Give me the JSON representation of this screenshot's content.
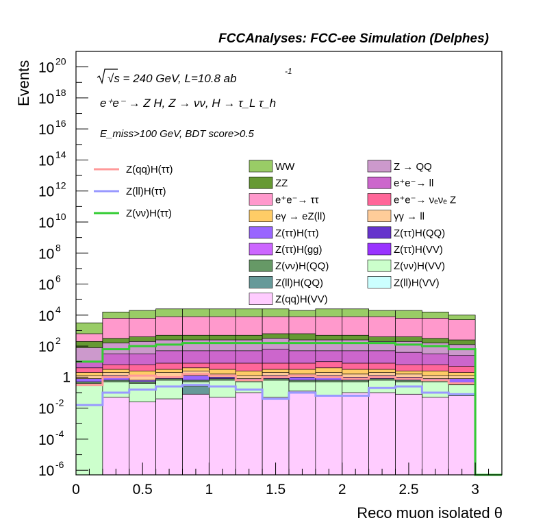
{
  "chart_data": {
    "type": "stacked-histogram",
    "title": "FCCAnalyses: FCC-ee Simulation (Delphes)",
    "annotations": {
      "energy_lumi": "√s = 240 GeV, L=10.8 ab",
      "energy_lumi_sup": "-1",
      "process": "e⁺e⁻ → Z H, Z → νν, H → τ_L τ_h",
      "selection": "E_miss>100 GeV, BDT score>0.5"
    },
    "xlabel": "Reco muon isolated θ",
    "ylabel": "Events",
    "xlim": [
      0,
      3.2
    ],
    "ylim_log10": [
      -6.3,
      21
    ],
    "y_scale": "log",
    "x_ticks": [
      "0",
      "0.5",
      "1",
      "1.5",
      "2",
      "2.5",
      "3"
    ],
    "x_tick_values": [
      0,
      0.5,
      1,
      1.5,
      2,
      2.5,
      3
    ],
    "y_ticks": [
      {
        "base": "10",
        "exp": "-6",
        "log": -6
      },
      {
        "base": "10",
        "exp": "-4",
        "log": -4
      },
      {
        "base": "10",
        "exp": "-2",
        "log": -2
      },
      {
        "base": "1",
        "exp": "",
        "log": 0
      },
      {
        "base": "10",
        "exp": "2",
        "log": 2
      },
      {
        "base": "10",
        "exp": "4",
        "log": 4
      },
      {
        "base": "10",
        "exp": "6",
        "log": 6
      },
      {
        "base": "10",
        "exp": "8",
        "log": 8
      },
      {
        "base": "10",
        "exp": "10",
        "log": 10
      },
      {
        "base": "10",
        "exp": "12",
        "log": 12
      },
      {
        "base": "10",
        "exp": "14",
        "log": 14
      },
      {
        "base": "10",
        "exp": "16",
        "log": 16
      },
      {
        "base": "10",
        "exp": "18",
        "log": 18
      },
      {
        "base": "10",
        "exp": "20",
        "log": 20
      }
    ],
    "bin_edges": [
      0,
      0.2,
      0.4,
      0.6,
      0.8,
      1.0,
      1.2,
      1.4,
      1.6,
      1.8,
      2.0,
      2.2,
      2.4,
      2.6,
      2.8,
      3.0,
      3.2
    ],
    "stack_log10_tops": [
      {
        "name": "Z(qq)H(VV)",
        "color": "#ffccff",
        "top": [
          -6.3,
          -1.3,
          -1.6,
          -1.4,
          -1.1,
          -1.3,
          -1.0,
          -1.3,
          -0.9,
          -1.2,
          -1.0,
          -1.0,
          -1.1,
          -1.3,
          -1.2,
          -6.3
        ]
      },
      {
        "name": "Z(ll)H(VV)",
        "color": "#ccffff",
        "top": [
          -6.3,
          -1.4,
          -1.7,
          -1.5,
          -1.2,
          -1.4,
          -1.1,
          -1.4,
          -1.0,
          -1.3,
          -1.1,
          -1.1,
          -1.2,
          -1.4,
          -1.3,
          -6.3
        ]
      },
      {
        "name": "Z(ll)H(QQ)",
        "color": "#669999",
        "top": [
          -6.3,
          -6.3,
          -6.3,
          -6.3,
          -0.6,
          -6.3,
          -6.3,
          -6.3,
          -6.3,
          -6.3,
          -6.3,
          -6.3,
          -6.3,
          -6.3,
          -6.3,
          -6.3
        ]
      },
      {
        "name": "Z(νν)H(VV)",
        "color": "#ccffcc",
        "top": [
          -0.4,
          -0.3,
          -0.4,
          -0.2,
          -0.3,
          -0.2,
          -0.3,
          -0.2,
          -0.3,
          -0.3,
          -0.3,
          -0.2,
          -0.3,
          -0.3,
          -0.5,
          -6.3
        ]
      },
      {
        "name": "Z(νν)H(QQ)",
        "color": "#669966",
        "top": [
          -0.3,
          -0.2,
          -0.3,
          -0.1,
          -0.2,
          -0.1,
          -0.2,
          -0.1,
          -0.2,
          -0.2,
          -0.2,
          -0.1,
          -0.2,
          -0.2,
          -0.4,
          -6.3
        ]
      },
      {
        "name": "Z(ττ)H(VV)",
        "color": "#9933ff",
        "top": [
          -6.3,
          -6.3,
          -1.2,
          -6.3,
          -1.4,
          -6.3,
          -1.3,
          -6.3,
          -1.5,
          -6.3,
          -6.3,
          -6.3,
          -6.3,
          -1.2,
          -6.3,
          -6.3
        ]
      },
      {
        "name": "Z(ττ)H(gg)",
        "color": "#cc66ff",
        "top": [
          -6.3,
          -6.3,
          -6.3,
          -6.3,
          -6.3,
          -6.3,
          -6.3,
          -6.3,
          -6.3,
          -6.3,
          -1.8,
          -1.9,
          -6.3,
          -1.9,
          -6.3,
          -6.3
        ]
      },
      {
        "name": "Z(ττ)H(QQ)",
        "color": "#6633cc",
        "top": [
          -6.3,
          -4.2,
          -0.6,
          -1.8,
          -6.3,
          -1.0,
          -1.3,
          -1.0,
          -1.5,
          -6.3,
          -6.3,
          -0.6,
          -6.3,
          -1.3,
          -0.8,
          -6.3
        ]
      },
      {
        "name": "Z(ττ)H(ττ)",
        "color": "#9966ff",
        "top": [
          -0.1,
          0.1,
          -0.2,
          0.0,
          0.1,
          0.0,
          -0.1,
          0.1,
          0.0,
          0.1,
          0.0,
          0.1,
          0.0,
          -0.1,
          -0.1,
          -6.3
        ]
      },
      {
        "name": "γγ → ll",
        "color": "#ffcc99",
        "top": [
          0.1,
          0.3,
          0.1,
          0.3,
          0.4,
          0.2,
          0.1,
          0.3,
          0.2,
          0.3,
          0.2,
          0.3,
          0.2,
          0.1,
          0.1,
          -6.3
        ]
      },
      {
        "name": "eγ → eZ(ll)",
        "color": "#ffcc66",
        "top": [
          0.3,
          0.5,
          0.4,
          0.5,
          0.6,
          0.5,
          0.4,
          0.5,
          0.5,
          0.6,
          0.5,
          0.5,
          0.4,
          0.4,
          0.3,
          -6.3
        ]
      },
      {
        "name": "e⁺e⁻→ νₑνₑ Z",
        "color": "#ff6699",
        "top": [
          0.6,
          0.8,
          0.8,
          0.9,
          0.9,
          0.9,
          0.9,
          0.9,
          0.9,
          1.0,
          0.9,
          0.9,
          0.8,
          0.8,
          0.7,
          -6.3
        ]
      },
      {
        "name": "e⁺e⁻→ ll",
        "color": "#cc66cc",
        "top": [
          1.0,
          1.5,
          1.5,
          1.7,
          1.7,
          1.7,
          1.7,
          1.8,
          1.7,
          1.7,
          1.7,
          1.7,
          1.6,
          1.5,
          1.4,
          -6.3
        ]
      },
      {
        "name": "Z → QQ",
        "color": "#cc99cc",
        "top": [
          1.9,
          2.2,
          2.3,
          2.4,
          2.4,
          2.4,
          2.4,
          2.5,
          2.4,
          2.4,
          2.4,
          2.3,
          2.3,
          2.2,
          2.1,
          -6.3
        ]
      },
      {
        "name": "ZZ",
        "color": "#669933",
        "top": [
          2.3,
          2.5,
          2.6,
          2.7,
          2.7,
          2.7,
          2.7,
          2.8,
          2.8,
          2.7,
          2.7,
          2.6,
          2.6,
          2.5,
          2.4,
          -6.3
        ]
      },
      {
        "name": "e⁺e⁻→ ττ",
        "color": "#ff99cc",
        "top": [
          2.8,
          3.8,
          3.8,
          3.9,
          3.9,
          3.9,
          3.9,
          3.9,
          3.9,
          3.9,
          3.9,
          3.9,
          3.8,
          3.8,
          3.7,
          -6.3
        ]
      },
      {
        "name": "WW",
        "color": "#99cc66",
        "top": [
          3.5,
          4.2,
          4.3,
          4.4,
          4.4,
          4.4,
          4.4,
          4.4,
          4.3,
          4.4,
          4.4,
          4.3,
          4.3,
          4.2,
          4.0,
          -6.3
        ]
      }
    ],
    "signals": [
      {
        "name": "Z(qq)H(ττ)",
        "color": "#ff9999",
        "log10": [
          -0.5,
          0.0,
          0.1,
          0.0,
          0.2,
          0.1,
          -0.2,
          0.0,
          0.1,
          0.0,
          -0.1,
          0.0,
          -0.1,
          -0.2,
          -0.4,
          -6.3
        ]
      },
      {
        "name": "Z(ll)H(ττ)",
        "color": "#9999ff",
        "log10": [
          -1.8,
          -1.0,
          -0.8,
          -0.6,
          -0.5,
          -0.6,
          -0.8,
          -1.4,
          -1.0,
          -1.2,
          -1.2,
          -0.7,
          -0.6,
          -1.0,
          -1.1,
          -6.3
        ]
      },
      {
        "name": "Z(νν)H(ττ)",
        "color": "#33cc33",
        "log10": [
          1.0,
          1.8,
          2.0,
          2.1,
          2.2,
          2.2,
          2.2,
          2.2,
          2.2,
          2.2,
          2.2,
          2.2,
          2.1,
          2.0,
          1.8,
          -6.3
        ]
      }
    ],
    "legend_left": [
      {
        "name": "Z(qq)H(ττ)",
        "color": "#ff9999",
        "kind": "line"
      },
      {
        "name": "Z(ll)H(ττ)",
        "color": "#9999ff",
        "kind": "line"
      },
      {
        "name": "Z(νν)H(ττ)",
        "color": "#33cc33",
        "kind": "line"
      }
    ],
    "legend_col1": [
      {
        "name": "WW",
        "color": "#99cc66"
      },
      {
        "name": "ZZ",
        "color": "#669933"
      },
      {
        "name": "e⁺e⁻→ ττ",
        "color": "#ff99cc"
      },
      {
        "name": "eγ → eZ(ll)",
        "color": "#ffcc66"
      },
      {
        "name": "Z(ττ)H(ττ)",
        "color": "#9966ff"
      },
      {
        "name": "Z(ττ)H(gg)",
        "color": "#cc66ff"
      },
      {
        "name": "Z(νν)H(QQ)",
        "color": "#669966"
      },
      {
        "name": "Z(ll)H(QQ)",
        "color": "#669999"
      },
      {
        "name": "Z(qq)H(VV)",
        "color": "#ffccff"
      }
    ],
    "legend_col2": [
      {
        "name": "Z → QQ",
        "color": "#cc99cc"
      },
      {
        "name": "e⁺e⁻→ ll",
        "color": "#cc66cc"
      },
      {
        "name": "e⁺e⁻→ νₑνₑ Z",
        "color": "#ff6699"
      },
      {
        "name": "γγ → ll",
        "color": "#ffcc99"
      },
      {
        "name": "Z(ττ)H(QQ)",
        "color": "#6633cc"
      },
      {
        "name": "Z(ττ)H(VV)",
        "color": "#9933ff"
      },
      {
        "name": "Z(νν)H(VV)",
        "color": "#ccffcc"
      },
      {
        "name": "Z(ll)H(VV)",
        "color": "#ccffff"
      }
    ],
    "grid": false,
    "legend_position": "top-center"
  }
}
